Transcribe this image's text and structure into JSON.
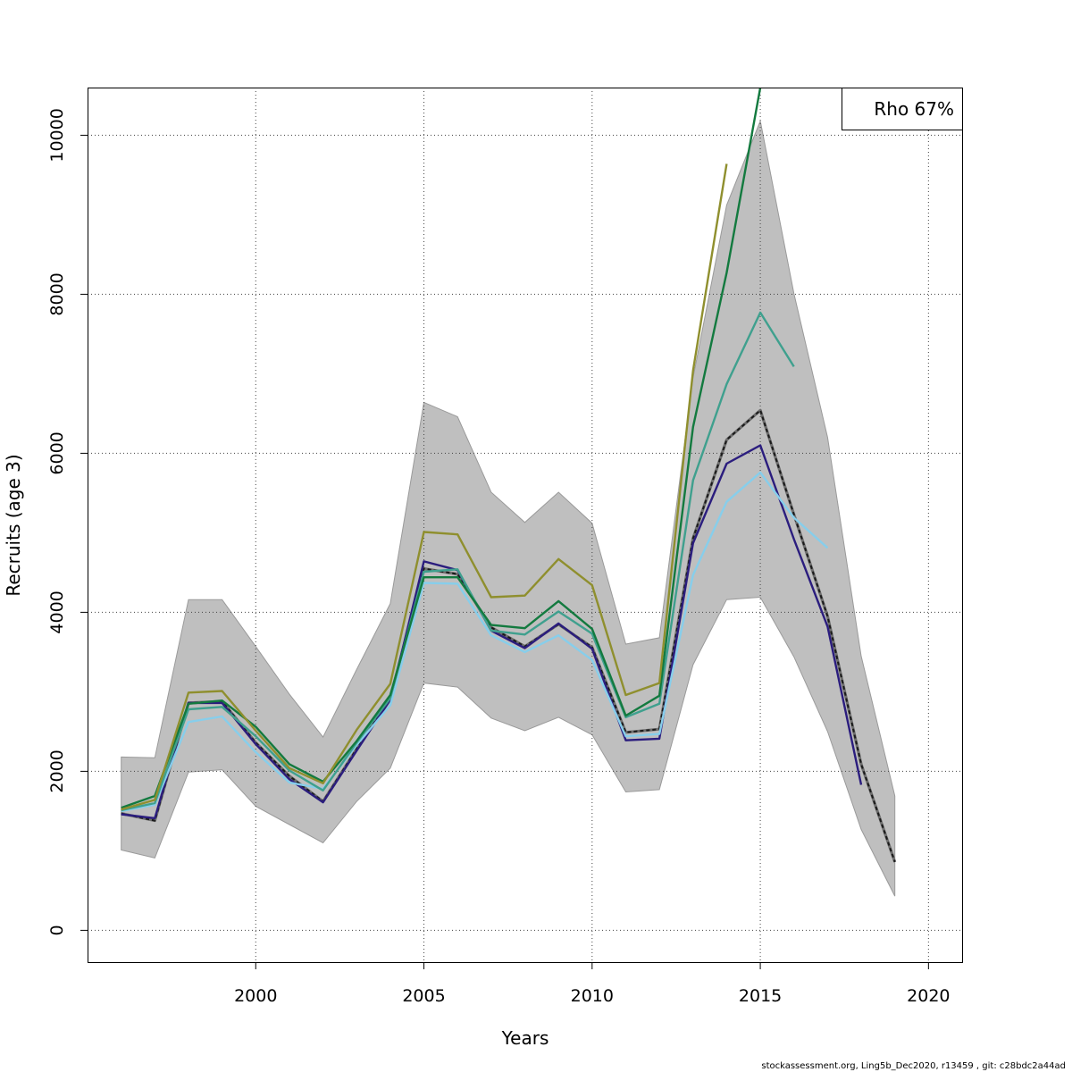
{
  "chart_data": {
    "type": "line",
    "xlabel": "Years",
    "ylabel": "Recruits (age 3)",
    "xlim": [
      1995,
      2021
    ],
    "ylim": [
      -400,
      10600
    ],
    "x_ticks": [
      2000,
      2005,
      2010,
      2015,
      2020
    ],
    "x_tick_labels": [
      "2000",
      "2005",
      "2010",
      "2015",
      "2020"
    ],
    "y_ticks": [
      0,
      2000,
      4000,
      6000,
      8000,
      10000
    ],
    "y_tick_labels": [
      "0",
      "2000",
      "4000",
      "6000",
      "8000",
      "10000"
    ],
    "grid": true,
    "legend": {
      "placement": "top-right",
      "text": "Rho 67%"
    },
    "footer": "stockassessment.org, Ling5b_Dec2020, r13459 , git: c28bdc2a44ad",
    "confidence_band": {
      "x": [
        1996,
        1997,
        1998,
        1999,
        2000,
        2001,
        2002,
        2003,
        2004,
        2005,
        2006,
        2007,
        2008,
        2009,
        2010,
        2011,
        2012,
        2013,
        2014,
        2015,
        2016,
        2017,
        2018,
        2019
      ],
      "upper": [
        2180,
        2170,
        4160,
        4160,
        3570,
        2970,
        2430,
        3280,
        4110,
        6640,
        6460,
        5510,
        5130,
        5510,
        5120,
        3600,
        3680,
        6950,
        9120,
        10180,
        8010,
        6200,
        3450,
        1690
      ],
      "lower": [
        1010,
        910,
        1990,
        2020,
        1560,
        1330,
        1100,
        1620,
        2040,
        3110,
        3060,
        2670,
        2510,
        2680,
        2460,
        1740,
        1770,
        3340,
        4160,
        4190,
        3440,
        2500,
        1270,
        430
      ]
    },
    "series": [
      {
        "color": "#1a1a1a",
        "dashed": true,
        "x": [
          1996,
          1997,
          1998,
          1999,
          2000,
          2001,
          2002,
          2003,
          2004,
          2005,
          2006,
          2007,
          2008,
          2009,
          2010,
          2011,
          2012,
          2013,
          2014,
          2015,
          2016,
          2017,
          2018,
          2019
        ],
        "values": [
          1470,
          1380,
          2860,
          2880,
          2360,
          1940,
          1620,
          2280,
          2920,
          4550,
          4480,
          3810,
          3570,
          3850,
          3560,
          2490,
          2530,
          4930,
          6170,
          6540,
          5230,
          3950,
          2090,
          860
        ]
      },
      {
        "color": "#2b1d7e",
        "x": [
          1996,
          1997,
          1998,
          1999,
          2000,
          2001,
          2002,
          2003,
          2004,
          2005,
          2006,
          2007,
          2008,
          2009,
          2010,
          2011,
          2012,
          2013,
          2014,
          2015,
          2016,
          2017,
          2018
        ],
        "values": [
          1460,
          1410,
          2860,
          2860,
          2340,
          1900,
          1610,
          2260,
          2900,
          4640,
          4530,
          3770,
          3550,
          3860,
          3540,
          2390,
          2410,
          4870,
          5870,
          6100,
          4920,
          3820,
          1830
        ]
      },
      {
        "color": "#87ceeb",
        "x": [
          1996,
          1997,
          1998,
          1999,
          2000,
          2001,
          2002,
          2003,
          2004,
          2005,
          2006,
          2007,
          2008,
          2009,
          2010,
          2011,
          2012,
          2013,
          2014,
          2015,
          2016,
          2017
        ],
        "values": [
          1500,
          1580,
          2620,
          2690,
          2240,
          1860,
          1780,
          2330,
          2830,
          4370,
          4360,
          3710,
          3500,
          3710,
          3400,
          2440,
          2470,
          4470,
          5390,
          5760,
          5190,
          4810
        ]
      },
      {
        "color": "#3fa08e",
        "x": [
          1996,
          1997,
          1998,
          1999,
          2000,
          2001,
          2002,
          2003,
          2004,
          2005,
          2006,
          2007,
          2008,
          2009,
          2010,
          2011,
          2012,
          2013,
          2014,
          2015,
          2016
        ],
        "values": [
          1510,
          1600,
          2780,
          2810,
          2440,
          2010,
          1760,
          2360,
          2920,
          4510,
          4540,
          3770,
          3720,
          4010,
          3730,
          2680,
          2850,
          5660,
          6870,
          7770,
          7090
        ]
      },
      {
        "color": "#137a3f",
        "x": [
          1996,
          1997,
          1998,
          1999,
          2000,
          2001,
          2002,
          2003,
          2004,
          2005,
          2006,
          2007,
          2008,
          2009,
          2010,
          2011,
          2012,
          2013,
          2014,
          2015
        ],
        "values": [
          1540,
          1690,
          2850,
          2890,
          2560,
          2090,
          1870,
          2380,
          2960,
          4440,
          4440,
          3840,
          3800,
          4140,
          3790,
          2700,
          2950,
          6330,
          8270,
          10600
        ]
      },
      {
        "color": "#8f8f2e",
        "x": [
          1996,
          1997,
          1998,
          1999,
          2000,
          2001,
          2002,
          2003,
          2004,
          2005,
          2006,
          2007,
          2008,
          2009,
          2010,
          2011,
          2012,
          2013,
          2014
        ],
        "values": [
          1520,
          1640,
          2990,
          3010,
          2510,
          2040,
          1850,
          2520,
          3100,
          5010,
          4980,
          4190,
          4210,
          4670,
          4340,
          2960,
          3110,
          7040,
          9640
        ]
      }
    ]
  }
}
